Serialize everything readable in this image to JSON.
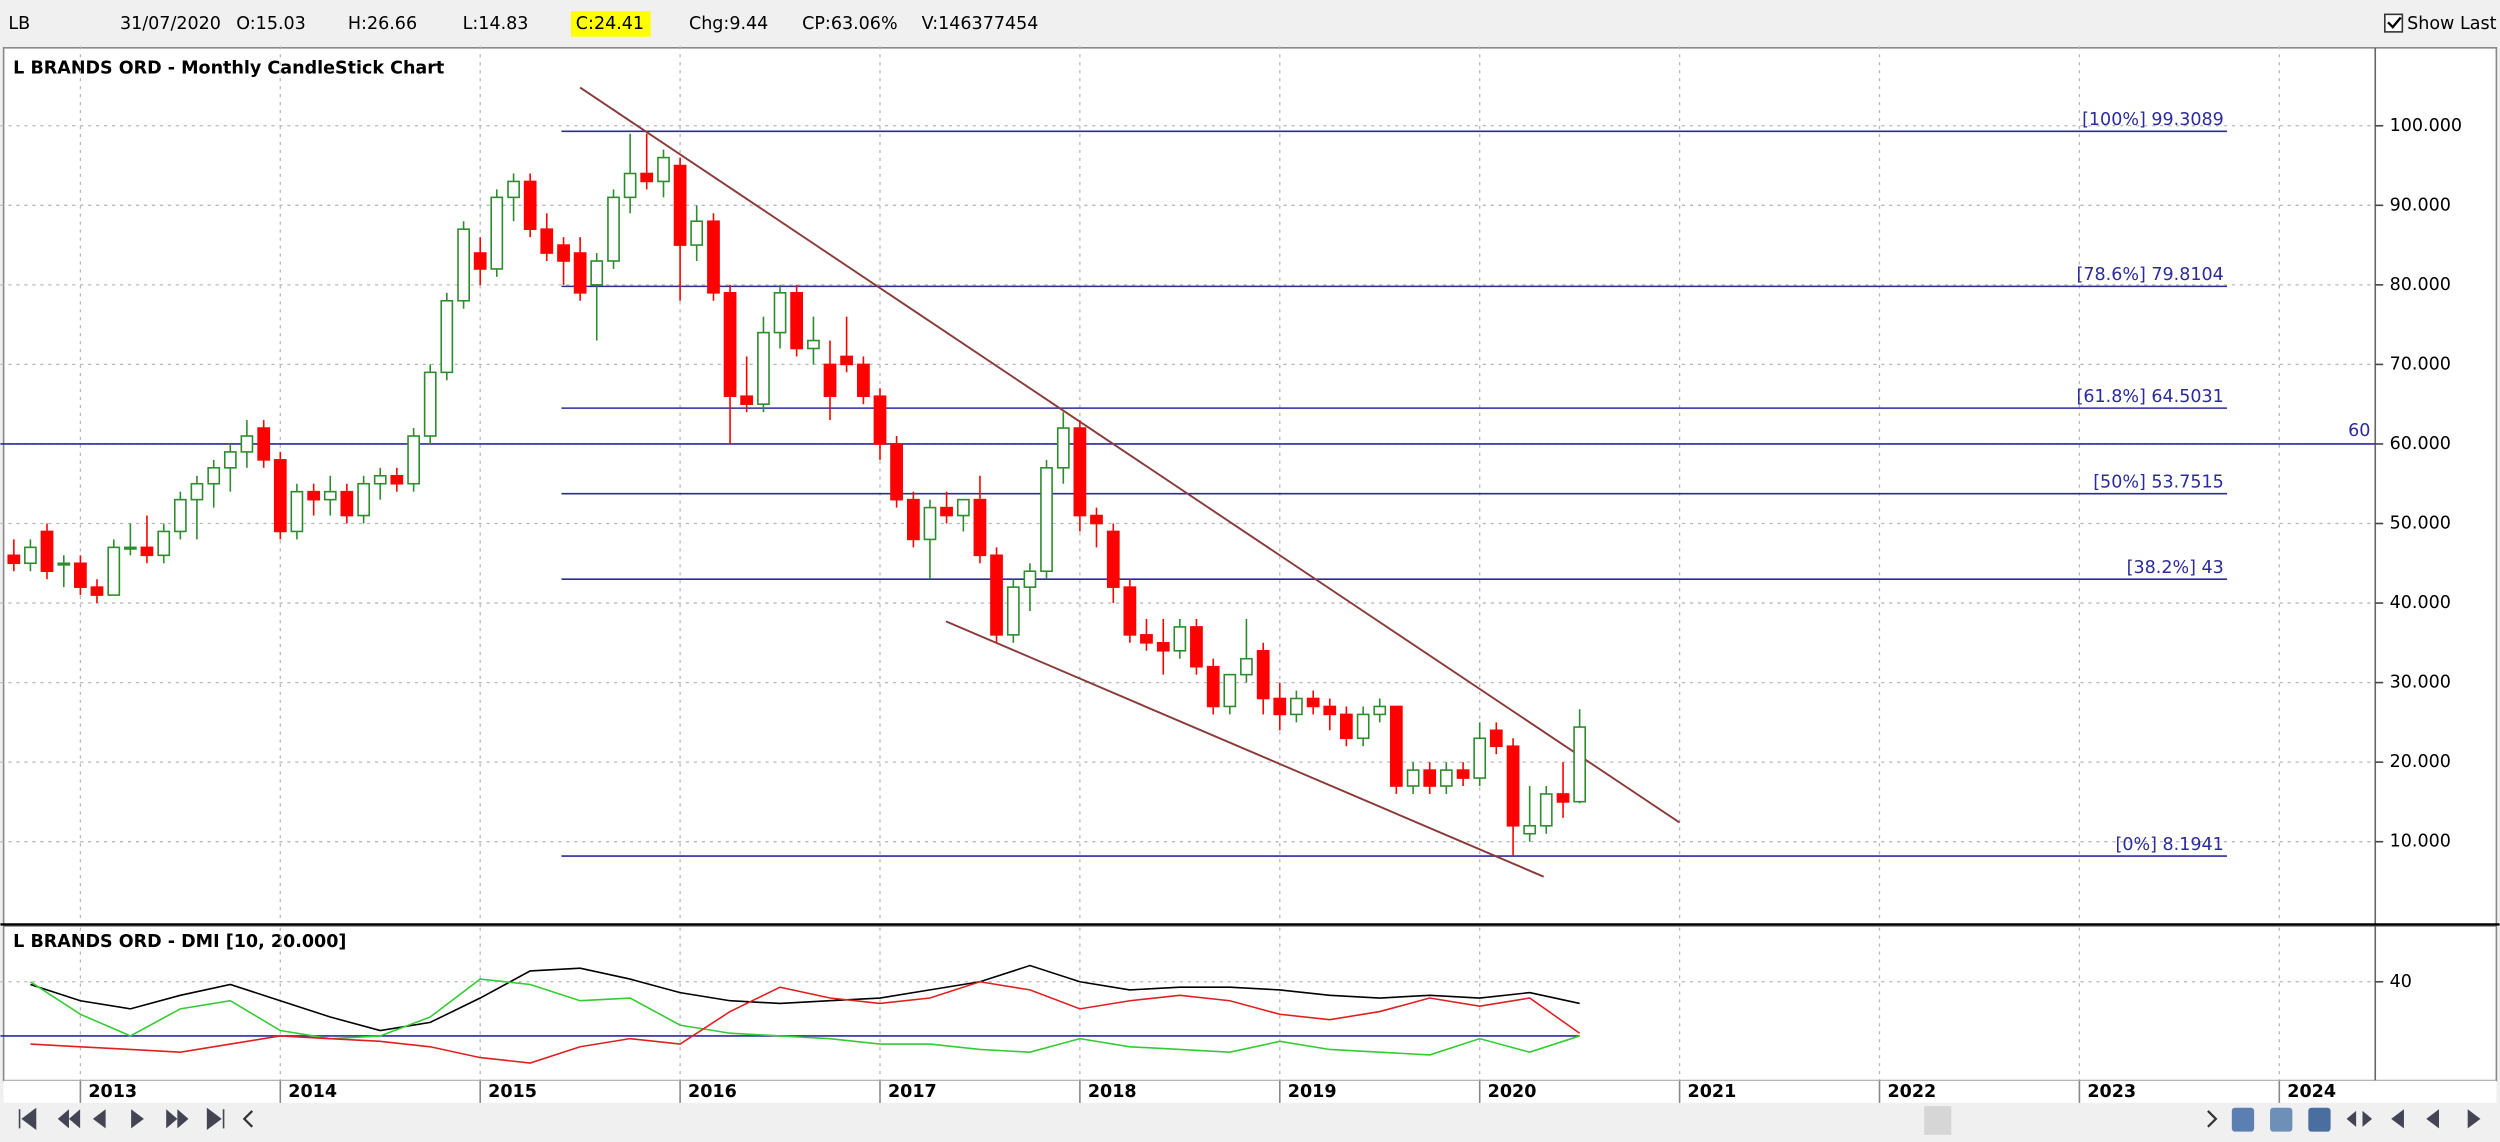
{
  "header": {
    "symbol": "LB",
    "date": "31/07/2020",
    "open": "O:15.03",
    "high": "H:26.66",
    "low": "L:14.83",
    "close": "C:24.41",
    "change": "Chg:9.44",
    "change_pct": "CP:63.06%",
    "volume": "V:146377454",
    "show_last": "Show Last"
  },
  "chart_data": [
    {
      "type": "candlestick",
      "title": "L BRANDS ORD - Monthly CandleStick Chart",
      "x": [
        2012.667,
        2012.75,
        2012.833,
        2012.917,
        2013.0,
        2013.083,
        2013.167,
        2013.25,
        2013.333,
        2013.417,
        2013.5,
        2013.583,
        2013.667,
        2013.75,
        2013.833,
        2013.917,
        2014.0,
        2014.083,
        2014.167,
        2014.25,
        2014.333,
        2014.417,
        2014.5,
        2014.583,
        2014.667,
        2014.75,
        2014.833,
        2014.917,
        2015.0,
        2015.083,
        2015.167,
        2015.25,
        2015.333,
        2015.417,
        2015.5,
        2015.583,
        2015.667,
        2015.75,
        2015.833,
        2015.917,
        2016.0,
        2016.083,
        2016.167,
        2016.25,
        2016.333,
        2016.417,
        2016.5,
        2016.583,
        2016.667,
        2016.75,
        2016.833,
        2016.917,
        2017.0,
        2017.083,
        2017.167,
        2017.25,
        2017.333,
        2017.417,
        2017.5,
        2017.583,
        2017.667,
        2017.75,
        2017.833,
        2017.917,
        2018.0,
        2018.083,
        2018.167,
        2018.25,
        2018.333,
        2018.417,
        2018.5,
        2018.583,
        2018.667,
        2018.75,
        2018.833,
        2018.917,
        2019.0,
        2019.083,
        2019.167,
        2019.25,
        2019.333,
        2019.417,
        2019.5,
        2019.583,
        2019.667,
        2019.75,
        2019.833,
        2019.917,
        2020.0,
        2020.083,
        2020.167,
        2020.25,
        2020.333,
        2020.417,
        2020.5
      ],
      "open": [
        46,
        45,
        49,
        45,
        45,
        42,
        41,
        47,
        47,
        46,
        49,
        53,
        55,
        57,
        59,
        62,
        58,
        49,
        54,
        53,
        54,
        51,
        55,
        56,
        55,
        61,
        69,
        78,
        84,
        82,
        91,
        93,
        87,
        85,
        84,
        80,
        83,
        91,
        94,
        93,
        95,
        85,
        88,
        79,
        66,
        65,
        74,
        79,
        72,
        70,
        71,
        70,
        66,
        60,
        53,
        48,
        52,
        51,
        53,
        46,
        36,
        42,
        44,
        57,
        62,
        51,
        49,
        42,
        36,
        35,
        34,
        37,
        32,
        27,
        31,
        34,
        28,
        26,
        28,
        27,
        26,
        23,
        26,
        27,
        17,
        19,
        17,
        19,
        18,
        24,
        22,
        11,
        12,
        16,
        15.03
      ],
      "high": [
        48,
        48,
        50,
        46,
        46,
        43,
        48,
        50,
        51,
        50,
        54,
        56,
        58,
        60,
        63,
        63,
        59,
        55,
        55,
        56,
        55,
        56,
        57,
        57,
        62,
        70,
        79,
        88,
        86,
        92,
        94,
        94,
        89,
        86,
        86,
        84,
        92,
        99,
        99,
        97,
        96,
        90,
        89,
        80,
        71,
        76,
        80,
        80,
        76,
        73,
        76,
        71,
        67,
        61,
        54,
        53,
        54,
        53,
        56,
        47,
        43,
        45,
        58,
        64,
        63,
        52,
        50,
        43,
        38,
        38,
        38,
        38,
        33,
        31,
        38,
        35,
        30,
        29,
        29,
        28,
        27,
        27,
        28,
        27,
        20,
        20,
        20,
        20,
        25,
        25,
        23,
        17,
        17,
        20,
        26.66
      ],
      "low": [
        44,
        44,
        43,
        42,
        41,
        40,
        41,
        46,
        45,
        45,
        48,
        48,
        52,
        54,
        57,
        57,
        48,
        48,
        51,
        51,
        50,
        50,
        53,
        54,
        54,
        60,
        68,
        77,
        80,
        81,
        88,
        86,
        83,
        80,
        78,
        73,
        82,
        89,
        92,
        91,
        78,
        83,
        78,
        60,
        64,
        64,
        72,
        71,
        70,
        63,
        69,
        65,
        58,
        52,
        47,
        43,
        50,
        49,
        45,
        35,
        35,
        39,
        43,
        55,
        49,
        47,
        40,
        35,
        34,
        31,
        33,
        31,
        26,
        26,
        30,
        26,
        24,
        25,
        26,
        24,
        22,
        22,
        25,
        16,
        16,
        16,
        16,
        17,
        17,
        21,
        8.2,
        10,
        11,
        13,
        14.83
      ],
      "close": [
        45,
        47,
        44,
        45,
        42,
        41,
        47,
        47,
        46,
        49,
        53,
        55,
        57,
        59,
        61,
        58,
        49,
        54,
        53,
        54,
        51,
        55,
        56,
        55,
        61,
        69,
        78,
        87,
        82,
        91,
        93,
        87,
        84,
        83,
        79,
        83,
        91,
        94,
        93,
        96,
        85,
        88,
        79,
        66,
        65,
        74,
        79,
        72,
        73,
        66,
        70,
        66,
        60,
        53,
        48,
        52,
        51,
        53,
        46,
        36,
        42,
        44,
        57,
        62,
        51,
        50,
        42,
        36,
        35,
        34,
        37,
        32,
        27,
        31,
        33,
        28,
        26,
        28,
        27,
        26,
        23,
        26,
        27,
        17,
        19,
        17,
        19,
        18,
        23,
        22,
        12,
        12,
        16,
        15,
        24.41
      ],
      "up_color": "#2e8b2e",
      "down_color": "#ff0000",
      "xlim": [
        2012.6,
        2024.48
      ],
      "ylim": [
        0,
        110
      ],
      "yticks": [
        {
          "value": 10,
          "label": "10.000"
        },
        {
          "value": 20,
          "label": "20.000"
        },
        {
          "value": 30,
          "label": "30.000"
        },
        {
          "value": 40,
          "label": "40.000"
        },
        {
          "value": 50,
          "label": "50.000"
        },
        {
          "value": 60,
          "label": "60.000"
        },
        {
          "value": 70,
          "label": "70.000"
        },
        {
          "value": 80,
          "label": "80.000"
        },
        {
          "value": 90,
          "label": "90.000"
        },
        {
          "value": 100,
          "label": "100.000"
        }
      ],
      "grid": true,
      "hlines": [
        {
          "value": 60,
          "label": "60"
        }
      ],
      "fib_levels": [
        {
          "value": 99.3089,
          "label": "[100%] 99.3089"
        },
        {
          "value": 79.8104,
          "label": "[78.6%] 79.8104"
        },
        {
          "value": 64.5031,
          "label": "[61.8%] 64.5031"
        },
        {
          "value": 53.7515,
          "label": "[50%] 53.7515"
        },
        {
          "value": 43,
          "label": "[38.2%] 43"
        },
        {
          "value": 8.1941,
          "label": "[0%] 8.1941"
        }
      ],
      "level_color": "#2b2b9e",
      "trendlines": [
        {
          "x": [
            2015.5,
            2021.0
          ],
          "y": [
            104.8,
            12.4
          ]
        },
        {
          "x": [
            2017.33,
            2020.32
          ],
          "y": [
            37.7,
            5.6
          ]
        }
      ],
      "trend_color": "#8b3a3a"
    },
    {
      "type": "line",
      "title": "L BRANDS ORD - DMI [10, 20.000]",
      "x": [
        2012.75,
        2013.0,
        2013.25,
        2013.5,
        2013.75,
        2014.0,
        2014.25,
        2014.5,
        2014.75,
        2015.0,
        2015.25,
        2015.5,
        2015.75,
        2016.0,
        2016.25,
        2016.5,
        2016.75,
        2017.0,
        2017.25,
        2017.5,
        2017.75,
        2018.0,
        2018.25,
        2018.5,
        2018.75,
        2019.0,
        2019.25,
        2019.5,
        2019.75,
        2020.0,
        2020.25,
        2020.5
      ],
      "series": [
        {
          "color": "#000000",
          "values": [
            39,
            33,
            30,
            35,
            39,
            33,
            27,
            22,
            25,
            34,
            44,
            45,
            41,
            36,
            33,
            32,
            33,
            34,
            37,
            40,
            46,
            40,
            37,
            38,
            38,
            37,
            35,
            34,
            35,
            34,
            36,
            32
          ]
        },
        {
          "color": "#33cc33",
          "values": [
            40,
            28,
            20,
            30,
            33,
            22,
            19,
            20,
            27,
            41,
            39,
            33,
            34,
            24,
            21,
            20,
            19,
            17,
            17,
            15,
            14,
            19,
            16,
            15,
            14,
            18,
            15,
            14,
            13,
            19,
            14,
            20
          ]
        },
        {
          "color": "#e02020",
          "values": [
            17,
            16,
            15,
            14,
            17,
            20,
            19,
            18,
            16,
            12,
            10,
            16,
            19,
            17,
            29,
            38,
            34,
            32,
            34,
            40,
            37,
            30,
            33,
            35,
            33,
            28,
            26,
            29,
            34,
            31,
            34,
            21
          ]
        }
      ],
      "xlim": [
        2012.6,
        2024.48
      ],
      "xticks": [
        2013,
        2014,
        2015,
        2016,
        2017,
        2018,
        2019,
        2020,
        2021,
        2022,
        2023,
        2024
      ],
      "ylim": [
        3.5,
        60
      ],
      "yticks": [
        40
      ],
      "hlines": [
        20
      ],
      "hline_color": "#2b2b9e",
      "grid": true
    }
  ]
}
